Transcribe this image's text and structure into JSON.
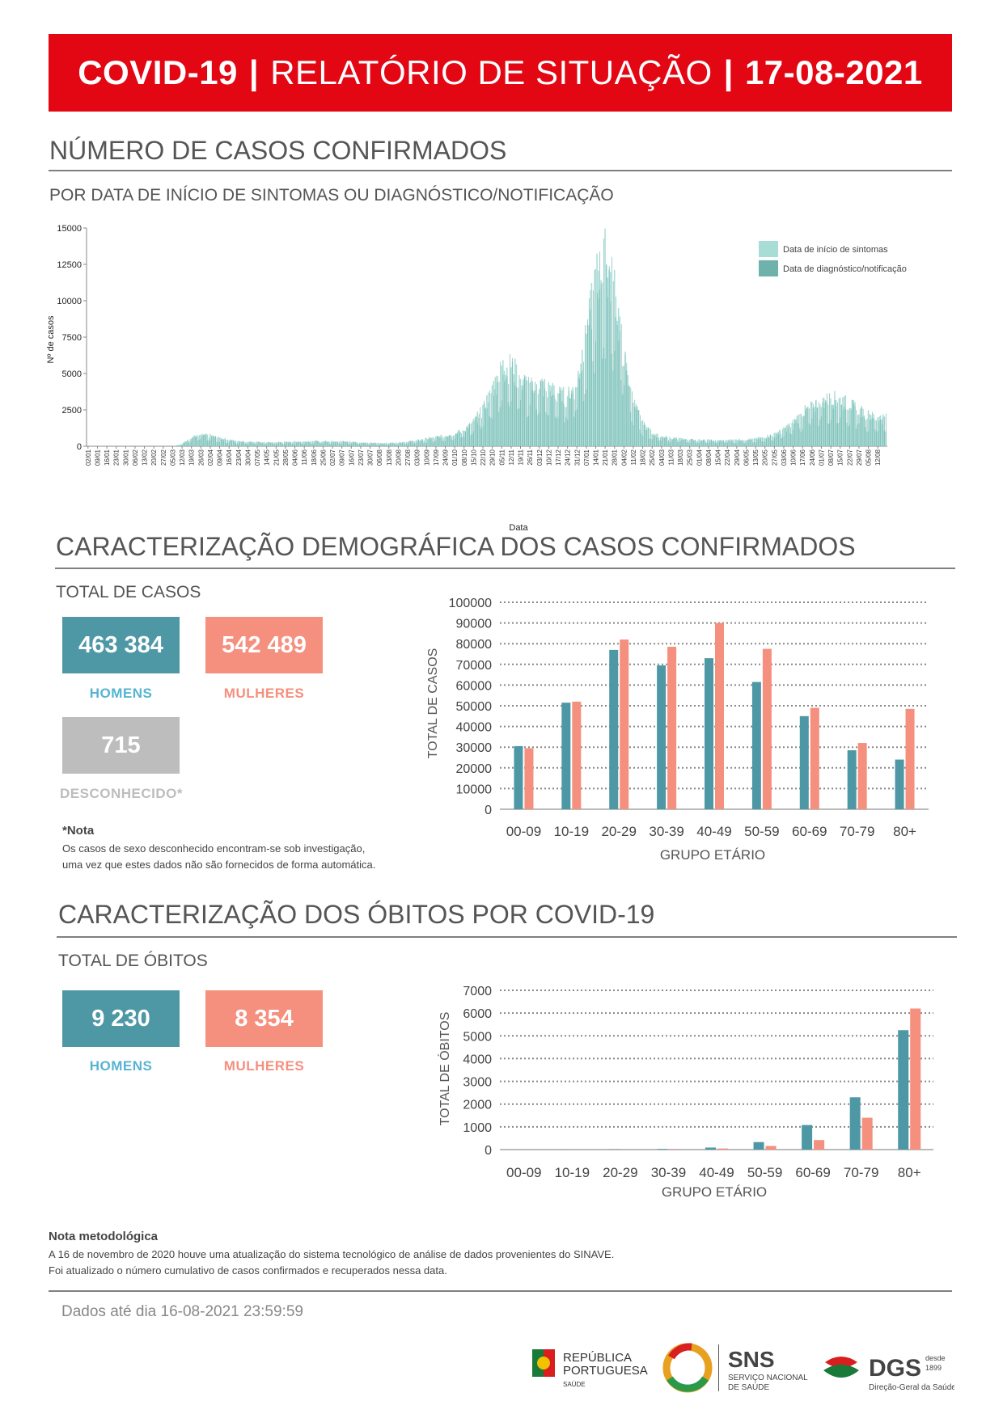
{
  "header": {
    "title_bold": "COVID-19",
    "separator": "|",
    "title_regular": "RELATÓRIO DE SITUAÇÃO",
    "date": "17-08-2021"
  },
  "section1": {
    "title": "NÚMERO DE CASOS CONFIRMADOS",
    "subtitle": "POR DATA DE INÍCIO DE SINTOMAS OU DIAGNÓSTICO/NOTIFICAÇÃO"
  },
  "section2": {
    "title": "CARACTERIZAÇÃO DEMOGRÁFICA DOS CASOS CONFIRMADOS",
    "total_label": "TOTAL DE CASOS",
    "men_value": "463 384",
    "men_label": "HOMENS",
    "women_value": "542 489",
    "women_label": "MULHERES",
    "unknown_value": "715",
    "unknown_label": "DESCONHECIDO*",
    "note_title": "*Nota",
    "note_line1": "Os casos de sexo desconhecido encontram-se sob investigação,",
    "note_line2": "uma vez que estes dados não são fornecidos de forma automática."
  },
  "section3": {
    "title": "CARACTERIZAÇÃO DOS ÓBITOS POR COVID-19",
    "total_label": "TOTAL DE ÓBITOS",
    "men_value": "9 230",
    "men_label": "HOMENS",
    "women_value": "8 354",
    "women_label": "MULHERES"
  },
  "method_note": {
    "title": "Nota metodológica",
    "line1": "A 16 de novembro de 2020 houve uma atualização do sistema tecnológico de análise de dados provenientes do SINAVE.",
    "line2": "Foi atualizado o número cumulativo de casos confirmados e recuperados nessa data."
  },
  "footer": {
    "data_until": "Dados até dia 16-08-2021 23:59:59",
    "logo_republica_line1": "REPÚBLICA",
    "logo_republica_line2": "PORTUGUESA",
    "logo_republica_line3": "SAÚDE",
    "logo_sns": "SNS",
    "logo_sns_line1": "SERVIÇO NACIONAL",
    "logo_sns_line2": "DE SAÚDE",
    "logo_dgs": "DGS",
    "logo_dgs_since1": "desde",
    "logo_dgs_since2": "1899",
    "logo_dgs_sub": "Direção-Geral da Saúde"
  },
  "colors": {
    "red": "#e30613",
    "teal": "#4e98a6",
    "salmon": "#f58f7e",
    "grey": "#bdbdbd",
    "daily_light": "#a8ddd6",
    "daily_dark": "#6fb2ac"
  },
  "chart_data": [
    {
      "id": "daily",
      "type": "bar",
      "xlabel": "Data",
      "ylabel": "Nº de casos",
      "ylim": [
        0,
        15000
      ],
      "yticks": [
        0,
        2500,
        5000,
        7500,
        10000,
        12500,
        15000
      ],
      "legend_position": "top-right",
      "series": [
        {
          "name": "Data de início de sintomas"
        },
        {
          "name": "Data de diagnóstico/notificação"
        }
      ],
      "x_tick_labels": [
        "02/01",
        "09/01",
        "16/01",
        "23/01",
        "30/01",
        "06/02",
        "13/02",
        "20/02",
        "27/02",
        "05/03",
        "12/03",
        "19/03",
        "26/03",
        "02/04",
        "09/04",
        "16/04",
        "23/04",
        "30/04",
        "07/05",
        "14/05",
        "21/05",
        "28/05",
        "04/06",
        "11/06",
        "18/06",
        "25/06",
        "02/07",
        "09/07",
        "16/07",
        "23/07",
        "30/07",
        "06/08",
        "13/08",
        "20/08",
        "27/08",
        "03/09",
        "10/09",
        "17/09",
        "24/09",
        "01/10",
        "08/10",
        "15/10",
        "22/10",
        "29/10",
        "05/11",
        "12/11",
        "19/11",
        "26/11",
        "03/12",
        "10/12",
        "17/12",
        "24/12",
        "31/12",
        "07/01",
        "14/01",
        "21/01",
        "28/01",
        "04/02",
        "11/02",
        "18/02",
        "25/02",
        "04/03",
        "11/03",
        "18/03",
        "25/03",
        "01/04",
        "08/04",
        "15/04",
        "22/04",
        "29/04",
        "06/05",
        "13/05",
        "20/05",
        "27/05",
        "03/06",
        "10/06",
        "17/06",
        "24/06",
        "01/07",
        "08/07",
        "15/07",
        "22/07",
        "29/07",
        "05/08",
        "12/08"
      ],
      "weekly_trend_approx": [
        0,
        0,
        0,
        0,
        0,
        0,
        0,
        0,
        0,
        0,
        150,
        600,
        750,
        700,
        550,
        420,
        350,
        300,
        280,
        250,
        260,
        280,
        300,
        320,
        330,
        340,
        350,
        320,
        300,
        250,
        220,
        200,
        210,
        250,
        300,
        380,
        480,
        600,
        700,
        850,
        1100,
        1600,
        2500,
        3800,
        5200,
        5400,
        4500,
        4000,
        4200,
        3800,
        3500,
        3300,
        4200,
        7500,
        11000,
        12500,
        10500,
        6000,
        3000,
        1500,
        900,
        600,
        550,
        500,
        450,
        420,
        400,
        380,
        400,
        430,
        450,
        480,
        600,
        800,
        1100,
        1600,
        2200,
        2700,
        3000,
        3200,
        3100,
        2800,
        2400,
        2100,
        1900
      ]
    },
    {
      "id": "cases-age",
      "type": "bar",
      "xlabel": "GRUPO ETÁRIO",
      "ylabel": "TOTAL DE CASOS",
      "ylim": [
        0,
        100000
      ],
      "yticks": [
        0,
        10000,
        20000,
        30000,
        40000,
        50000,
        60000,
        70000,
        80000,
        90000,
        100000
      ],
      "categories": [
        "00-09",
        "10-19",
        "20-29",
        "30-39",
        "40-49",
        "50-59",
        "60-69",
        "70-79",
        "80+"
      ],
      "series": [
        {
          "color": "#4e98a6",
          "values": [
            30500,
            51500,
            77000,
            69500,
            73000,
            61500,
            45000,
            28500,
            24000
          ]
        },
        {
          "color": "#f58f7e",
          "values": [
            29500,
            52000,
            82000,
            78500,
            90000,
            77500,
            49000,
            32000,
            48500
          ]
        }
      ]
    },
    {
      "id": "deaths-age",
      "type": "bar",
      "xlabel": "GRUPO ETÁRIO",
      "ylabel": "TOTAL DE ÓBITOS",
      "ylim": [
        0,
        7000
      ],
      "yticks": [
        0,
        1000,
        2000,
        3000,
        4000,
        5000,
        6000,
        7000
      ],
      "categories": [
        "00-09",
        "10-19",
        "20-29",
        "30-39",
        "40-49",
        "50-59",
        "60-69",
        "70-79",
        "80+"
      ],
      "series": [
        {
          "color": "#4e98a6",
          "values": [
            2,
            3,
            9,
            25,
            90,
            330,
            1080,
            2300,
            5250
          ]
        },
        {
          "color": "#f58f7e",
          "values": [
            1,
            2,
            6,
            15,
            50,
            160,
            420,
            1400,
            6200
          ]
        }
      ]
    }
  ]
}
